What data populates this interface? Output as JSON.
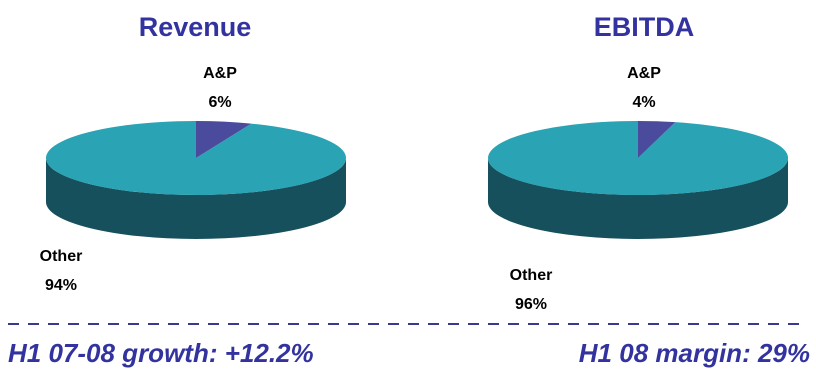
{
  "colors": {
    "title": "#3333a0",
    "footer": "#3333a0",
    "other_top": "#2aa3b4",
    "other_side": "#16505c",
    "ap_top": "#4b4b9e",
    "ap_side": "#26265e",
    "divider": "#3a3a8c"
  },
  "chart_data": [
    {
      "type": "pie",
      "title": "Revenue",
      "slices": [
        {
          "label": "A&P",
          "value": 6,
          "display": "6%"
        },
        {
          "label": "Other",
          "value": 94,
          "display": "94%"
        }
      ]
    },
    {
      "type": "pie",
      "title": "EBITDA",
      "slices": [
        {
          "label": "A&P",
          "value": 4,
          "display": "4%"
        },
        {
          "label": "Other",
          "value": 96,
          "display": "96%"
        }
      ]
    }
  ],
  "footer": {
    "left": "H1 07-08 growth: +12.2%",
    "right": "H1 08 margin: 29%"
  }
}
